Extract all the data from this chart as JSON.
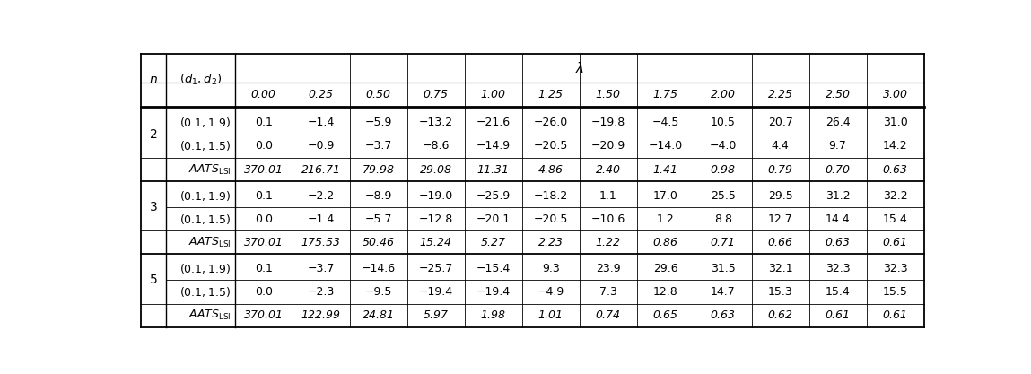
{
  "lambda_values": [
    "0.00",
    "0.25",
    "0.50",
    "0.75",
    "1.00",
    "1.25",
    "1.50",
    "1.75",
    "2.00",
    "2.25",
    "2.50",
    "3.00"
  ],
  "rows": {
    "2": {
      "d1_1.9": [
        "0.1",
        "−1.4",
        "−5.9",
        "−13.2",
        "−21.6",
        "−26.0",
        "−19.8",
        "−4.5",
        "10.5",
        "20.7",
        "26.4",
        "31.0"
      ],
      "d1_1.5": [
        "0.0",
        "−0.9",
        "−3.7",
        "−8.6",
        "−14.9",
        "−20.5",
        "−20.9",
        "−14.0",
        "−4.0",
        "4.4",
        "9.7",
        "14.2"
      ],
      "aats": [
        "370.01",
        "216.71",
        "79.98",
        "29.08",
        "11.31",
        "4.86",
        "2.40",
        "1.41",
        "0.98",
        "0.79",
        "0.70",
        "0.63"
      ]
    },
    "3": {
      "d1_1.9": [
        "0.1",
        "−2.2",
        "−8.9",
        "−19.0",
        "−25.9",
        "−18.2",
        "1.1",
        "17.0",
        "25.5",
        "29.5",
        "31.2",
        "32.2"
      ],
      "d1_1.5": [
        "0.0",
        "−1.4",
        "−5.7",
        "−12.8",
        "−20.1",
        "−20.5",
        "−10.6",
        "1.2",
        "8.8",
        "12.7",
        "14.4",
        "15.4"
      ],
      "aats": [
        "370.01",
        "175.53",
        "50.46",
        "15.24",
        "5.27",
        "2.23",
        "1.22",
        "0.86",
        "0.71",
        "0.66",
        "0.63",
        "0.61"
      ]
    },
    "5": {
      "d1_1.9": [
        "0.1",
        "−3.7",
        "−14.6",
        "−25.7",
        "−15.4",
        "9.3",
        "23.9",
        "29.6",
        "31.5",
        "32.1",
        "32.3",
        "32.3"
      ],
      "d1_1.5": [
        "0.0",
        "−2.3",
        "−9.5",
        "−19.4",
        "−19.4",
        "−4.9",
        "7.3",
        "12.8",
        "14.7",
        "15.3",
        "15.4",
        "15.5"
      ],
      "aats": [
        "370.01",
        "122.99",
        "24.81",
        "5.97",
        "1.98",
        "1.01",
        "0.74",
        "0.65",
        "0.63",
        "0.62",
        "0.61",
        "0.61"
      ]
    }
  },
  "bg_color": "#ffffff"
}
